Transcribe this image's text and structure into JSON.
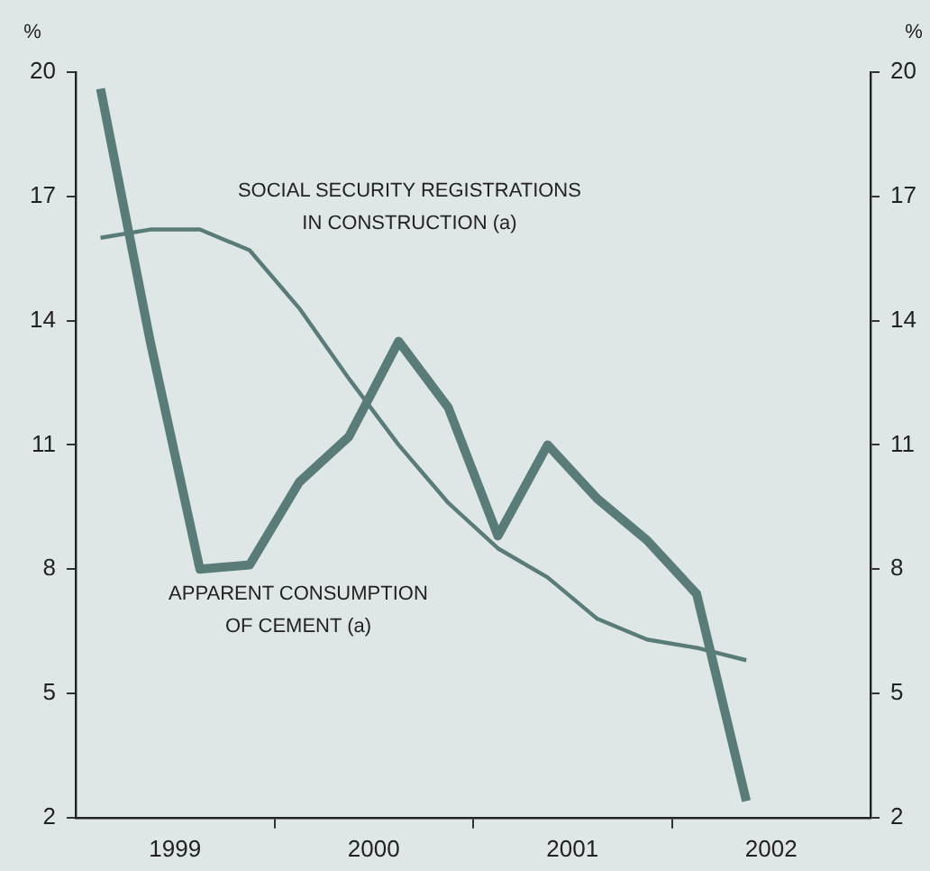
{
  "chart_data": {
    "type": "line",
    "ylabel": "%",
    "y2label": "%",
    "x": [
      1999.125,
      1999.375,
      1999.625,
      1999.875,
      2000.125,
      2000.375,
      2000.625,
      2000.875,
      2001.125,
      2001.375,
      2001.625,
      2001.875,
      2002.125,
      2002.375
    ],
    "xlim": [
      1999,
      2003
    ],
    "xticks": [
      {
        "value": 1999.5,
        "label": "1999"
      },
      {
        "value": 2000,
        "label": null
      },
      {
        "value": 2000.5,
        "label": "2000"
      },
      {
        "value": 2001,
        "label": null
      },
      {
        "value": 2001.5,
        "label": "2001"
      },
      {
        "value": 2002,
        "label": null
      },
      {
        "value": 2002.5,
        "label": "2002"
      }
    ],
    "ylim": [
      2,
      20
    ],
    "yticks": [
      2,
      5,
      8,
      11,
      14,
      17,
      20
    ],
    "y2lim": [
      2,
      20
    ],
    "y2ticks": [
      2,
      5,
      8,
      11,
      14,
      17,
      20
    ],
    "legend": false,
    "marker": "none",
    "line_style": "solid",
    "series": [
      {
        "name": "APPARENT CONSUMPTION\nOF CEMENT (a)",
        "color": "#5a7c78",
        "values": [
          19.6,
          13.5,
          8.0,
          8.1,
          10.1,
          11.2,
          13.5,
          11.9,
          8.8,
          11.0,
          9.7,
          8.7,
          7.4,
          2.4
        ]
      },
      {
        "name": "SOCIAL SECURITY REGISTRATIONS\nIN CONSTRUCTION (a)",
        "color": "#5a7c78",
        "values": [
          16.0,
          16.2,
          16.2,
          15.7,
          14.3,
          12.6,
          11.0,
          9.6,
          8.5,
          7.8,
          6.8,
          6.3,
          6.1,
          5.8
        ]
      }
    ]
  }
}
